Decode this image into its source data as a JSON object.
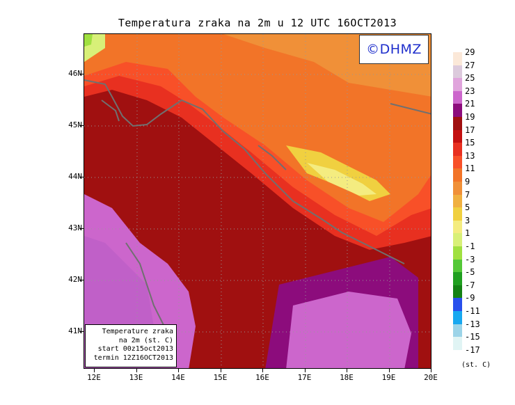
{
  "title": "Temperatura zraka na 2m u 12 UTC 16OCT2013",
  "logo_text": "©DHMZ",
  "info_box": {
    "line1": "Temperature zraka",
    "line2": "na 2m (st. C)",
    "line3": "start 00z15oct2013",
    "line4": "termin 12Z16OCT2013"
  },
  "lon_labels": [
    "12E",
    "13E",
    "14E",
    "15E",
    "16E",
    "17E",
    "18E",
    "19E",
    "20E"
  ],
  "lat_labels": [
    "46N",
    "45N",
    "44N",
    "43N",
    "42N",
    "41N"
  ],
  "legend": {
    "unit": "(st. C)",
    "labels": [
      "29",
      "27",
      "25",
      "23",
      "21",
      "19",
      "17",
      "15",
      "13",
      "11",
      "9",
      "7",
      "5",
      "3",
      "1",
      "-1",
      "-3",
      "-5",
      "-7",
      "-9",
      "-11",
      "-13",
      "-15",
      "-17"
    ],
    "colors": [
      "#fbe8d8",
      "#dccadc",
      "#e0a4dc",
      "#cc66cc",
      "#8c0c7c",
      "#a01010",
      "#c41010",
      "#e83020",
      "#f85028",
      "#f27428",
      "#f09038",
      "#f0b040",
      "#f0d040",
      "#f4ec80",
      "#d8f078",
      "#a0e040",
      "#54c838",
      "#20a020",
      "#148214",
      "#2850ec",
      "#18a8f0",
      "#9cd4e8",
      "#e0f4f4"
    ]
  },
  "colors": {
    "logo_text": "#1f2fcc",
    "coastline": "#707070",
    "grid": "#999999"
  }
}
